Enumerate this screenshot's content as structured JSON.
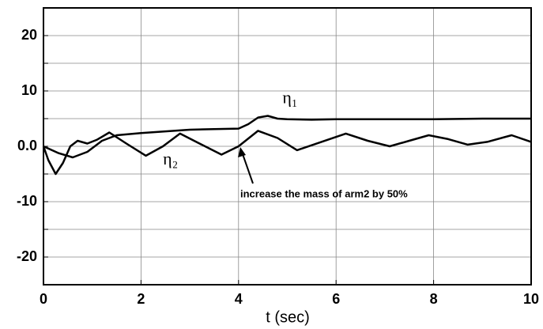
{
  "chart_data": {
    "type": "line",
    "xlabel": "t (sec)",
    "xlim": [
      0,
      10
    ],
    "xticks": [
      0,
      2,
      4,
      6,
      8,
      10
    ],
    "ylim": [
      -25,
      25
    ],
    "yticks": [
      -20,
      {
        "value": -15,
        "label": null
      },
      -10,
      {
        "value": -5,
        "label": null
      },
      {
        "value": 0,
        "label": "0.0"
      },
      {
        "value": 5,
        "label": null
      },
      10,
      {
        "value": 15,
        "label": null
      },
      20
    ],
    "grid": true,
    "series": [
      {
        "name": "η₁",
        "color": "#000000",
        "x": [
          0,
          0.3,
          0.6,
          0.9,
          1.2,
          1.5,
          2,
          2.5,
          3,
          3.5,
          4,
          4.2,
          4.4,
          4.6,
          4.8,
          5,
          5.5,
          6,
          7,
          8,
          9,
          10
        ],
        "values": [
          0,
          -1.2,
          -2,
          -1,
          1,
          2,
          2.4,
          2.7,
          3,
          3.1,
          3.2,
          4,
          5.2,
          5.5,
          5,
          4.9,
          4.8,
          4.9,
          4.9,
          4.9,
          5,
          5
        ]
      },
      {
        "name": "η₂",
        "color": "#000000",
        "x": [
          0,
          0.1,
          0.25,
          0.4,
          0.55,
          0.7,
          0.9,
          1.1,
          1.35,
          1.7,
          2.1,
          2.45,
          2.8,
          3.2,
          3.65,
          4,
          4.4,
          4.8,
          5.2,
          5.7,
          6.2,
          6.65,
          7.1,
          7.5,
          7.9,
          8.3,
          8.7,
          9.1,
          9.6,
          10
        ],
        "values": [
          0,
          -2.5,
          -5,
          -3,
          0,
          1,
          0.5,
          1.2,
          2.5,
          0.5,
          -1.7,
          0,
          2.3,
          0.5,
          -1.5,
          0,
          2.8,
          1.5,
          -0.7,
          0.8,
          2.3,
          1,
          0,
          1,
          2,
          1.3,
          0.3,
          0.8,
          2,
          0.8
        ]
      }
    ],
    "annotation": "increase the mass of arm2 by 50%"
  }
}
